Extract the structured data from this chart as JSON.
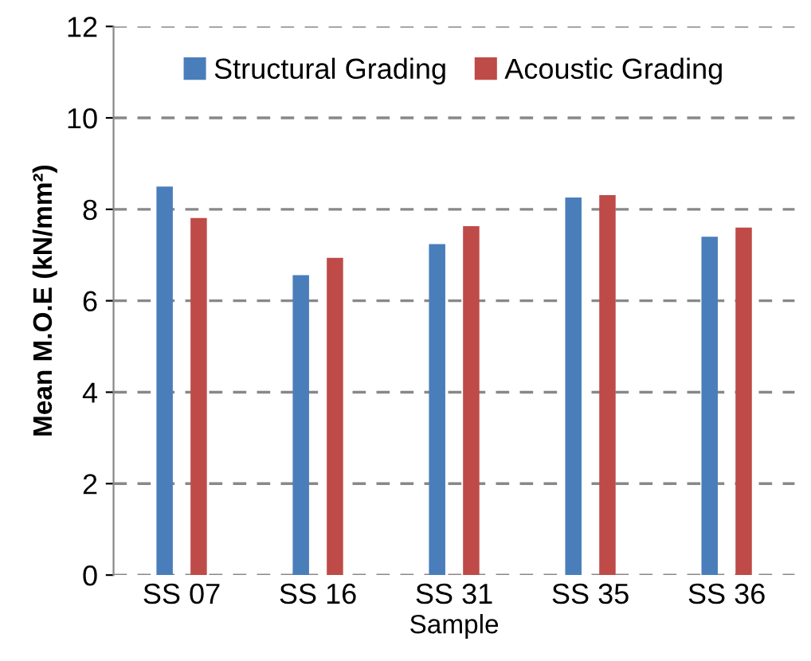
{
  "chart_data": {
    "type": "bar",
    "xlabel": "Sample",
    "ylabel": "Mean M.O.E (kN/mm²)",
    "categories": [
      "SS 07",
      "SS 16",
      "SS 31",
      "SS 35",
      "SS 36"
    ],
    "series": [
      {
        "name": "Structural Grading",
        "color": "#4a7ebb",
        "values": [
          8.5,
          6.56,
          7.24,
          8.26,
          7.4
        ]
      },
      {
        "name": "Acoustic Grading",
        "color": "#be4b48",
        "values": [
          7.81,
          6.94,
          7.63,
          8.31,
          7.6
        ]
      }
    ],
    "ylim": [
      0,
      12
    ],
    "yticks": [
      0,
      2,
      4,
      6,
      8,
      10,
      12
    ],
    "grid": "y",
    "legend": "top"
  }
}
